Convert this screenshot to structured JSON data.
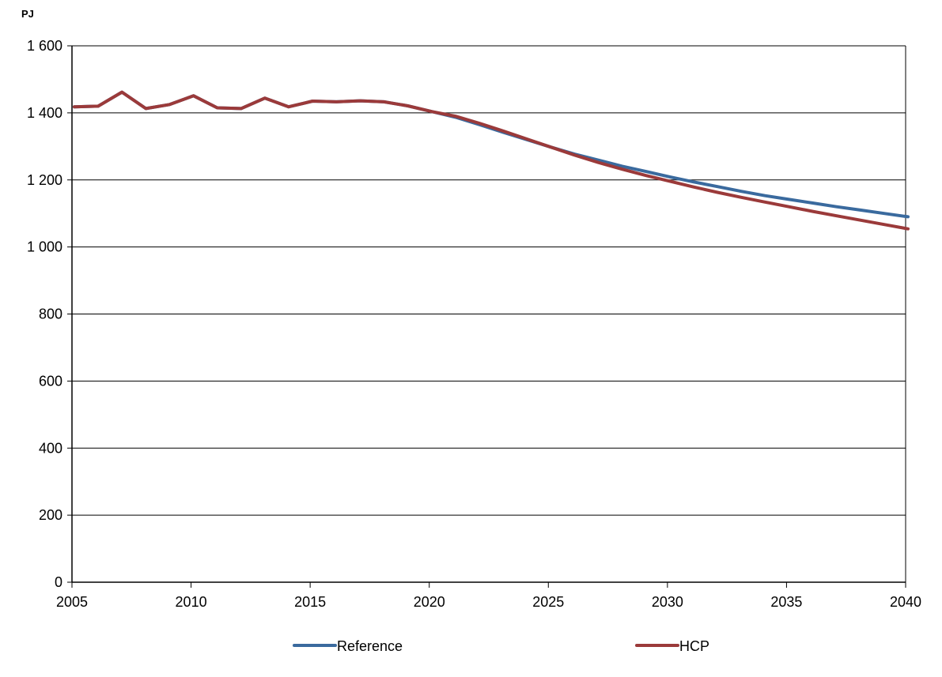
{
  "chart_data": {
    "type": "line",
    "ylabel": "PJ",
    "xlim": [
      2005,
      2040
    ],
    "ylim": [
      0,
      1600
    ],
    "x_ticks": [
      "2005",
      "2010",
      "2015",
      "2020",
      "2025",
      "2030",
      "2035",
      "2040"
    ],
    "y_ticks": [
      "0",
      "200",
      "400",
      "600",
      "800",
      "1 000",
      "1 200",
      "1 400",
      "1 600"
    ],
    "grid": "horizontal",
    "legend_position": "bottom",
    "series": [
      {
        "name": "Reference",
        "color": "#3a6a9e",
        "points": [
          [
            2005.1,
            1418
          ],
          [
            2006.1,
            1420
          ],
          [
            2007.1,
            1462
          ],
          [
            2008.1,
            1413
          ],
          [
            2009.1,
            1425
          ],
          [
            2010.1,
            1451
          ],
          [
            2011.1,
            1415
          ],
          [
            2012.1,
            1413
          ],
          [
            2013.1,
            1444
          ],
          [
            2014.1,
            1418
          ],
          [
            2015.1,
            1435
          ],
          [
            2016.1,
            1433
          ],
          [
            2017.1,
            1436
          ],
          [
            2018.1,
            1433
          ],
          [
            2019.1,
            1421
          ],
          [
            2020.1,
            1404
          ],
          [
            2021.1,
            1387
          ],
          [
            2022.1,
            1365
          ],
          [
            2023.1,
            1342
          ],
          [
            2024.1,
            1320
          ],
          [
            2025.1,
            1298
          ],
          [
            2026.1,
            1277
          ],
          [
            2027.1,
            1259
          ],
          [
            2028.1,
            1241
          ],
          [
            2029.1,
            1225
          ],
          [
            2030.1,
            1209
          ],
          [
            2031.1,
            1194
          ],
          [
            2032.1,
            1180
          ],
          [
            2033.1,
            1166
          ],
          [
            2034.1,
            1153
          ],
          [
            2035.1,
            1142
          ],
          [
            2036.1,
            1131
          ],
          [
            2037.1,
            1120
          ],
          [
            2038.1,
            1110
          ],
          [
            2039.1,
            1100
          ],
          [
            2040.1,
            1090
          ]
        ]
      },
      {
        "name": "HCP",
        "color": "#9b3a3a",
        "points": [
          [
            2005.1,
            1418
          ],
          [
            2006.1,
            1420
          ],
          [
            2007.1,
            1462
          ],
          [
            2008.1,
            1413
          ],
          [
            2009.1,
            1425
          ],
          [
            2010.1,
            1451
          ],
          [
            2011.1,
            1415
          ],
          [
            2012.1,
            1413
          ],
          [
            2013.1,
            1444
          ],
          [
            2014.1,
            1418
          ],
          [
            2015.1,
            1435
          ],
          [
            2016.1,
            1433
          ],
          [
            2017.1,
            1436
          ],
          [
            2018.1,
            1433
          ],
          [
            2019.1,
            1421
          ],
          [
            2020.1,
            1404
          ],
          [
            2021.1,
            1390
          ],
          [
            2022.1,
            1369
          ],
          [
            2023.1,
            1346
          ],
          [
            2024.1,
            1322
          ],
          [
            2025.1,
            1298
          ],
          [
            2026.1,
            1274
          ],
          [
            2027.1,
            1252
          ],
          [
            2028.1,
            1232
          ],
          [
            2029.1,
            1213
          ],
          [
            2030.1,
            1196
          ],
          [
            2031.1,
            1179
          ],
          [
            2032.1,
            1163
          ],
          [
            2033.1,
            1148
          ],
          [
            2034.1,
            1134
          ],
          [
            2035.1,
            1120
          ],
          [
            2036.1,
            1106
          ],
          [
            2037.1,
            1093
          ],
          [
            2038.1,
            1080
          ],
          [
            2039.1,
            1067
          ],
          [
            2040.1,
            1054
          ]
        ]
      }
    ]
  }
}
